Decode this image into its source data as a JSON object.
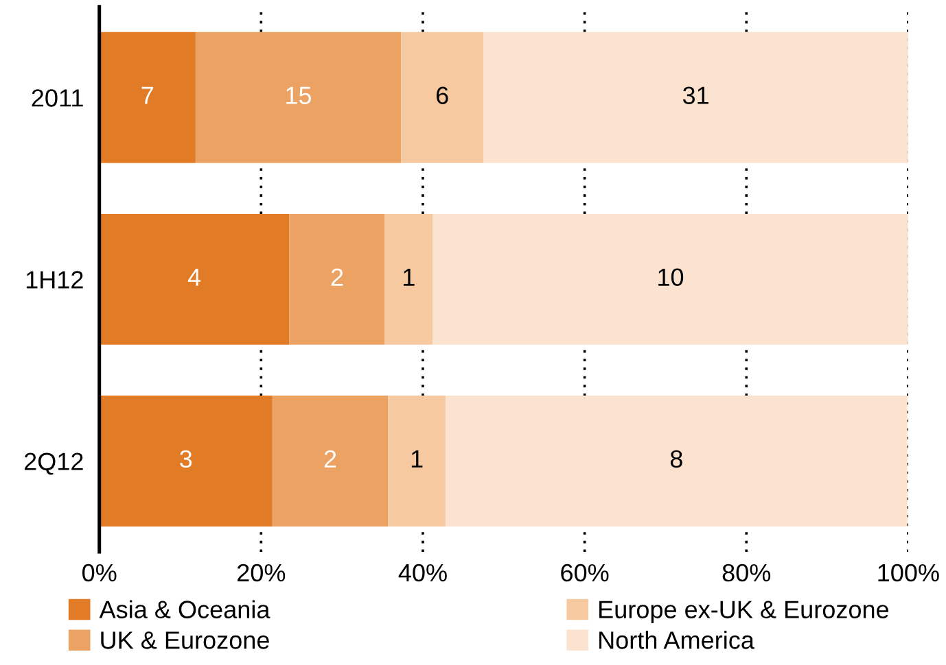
{
  "chart_data": {
    "type": "bar",
    "orientation": "horizontal",
    "stacked": true,
    "categories": [
      "2011",
      "1H12",
      "2Q12"
    ],
    "series": [
      {
        "name": "Asia & Oceania",
        "color": "#e27b26",
        "values": [
          11.9,
          23.5,
          21.4
        ]
      },
      {
        "name": "UK & Eurozone",
        "color": "#eca263",
        "values": [
          25.4,
          11.8,
          14.3
        ]
      },
      {
        "name": "Europe ex-UK & Eurozone",
        "color": "#f6c9a1",
        "values": [
          10.2,
          5.9,
          7.1
        ]
      },
      {
        "name": "North America",
        "color": "#fbe3d0",
        "values": [
          52.5,
          58.8,
          57.1
        ]
      }
    ],
    "annotations": [
      "7",
      "15",
      "6",
      "31",
      "4",
      "2",
      "1",
      "10",
      "3",
      "2",
      "1",
      "8"
    ],
    "xlim": [
      0,
      100
    ],
    "xticks": [
      {
        "value": 0,
        "label": "0%"
      },
      {
        "value": 20,
        "label": "20%"
      },
      {
        "value": 40,
        "label": "40%"
      },
      {
        "value": 60,
        "label": "60%"
      },
      {
        "value": 80,
        "label": "80%"
      },
      {
        "value": 100,
        "label": "100%"
      }
    ],
    "grid": "x",
    "legend": "bottom"
  }
}
